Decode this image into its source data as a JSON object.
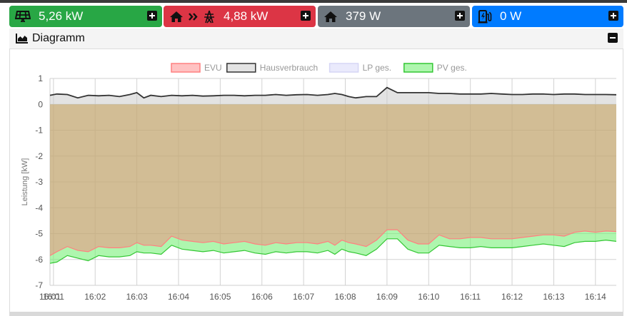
{
  "tiles": [
    {
      "value": "5,26 kW",
      "color": "#28a745",
      "icon": "solar-panel-icon"
    },
    {
      "value": "4,88 kW",
      "color": "#dc3545",
      "icon": "house-to-grid-icon"
    },
    {
      "value": "379 W",
      "color": "#6c757d",
      "icon": "house-icon"
    },
    {
      "value": "0 W",
      "color": "#007bff",
      "icon": "charging-station-icon"
    }
  ],
  "card": {
    "title": "Diagramm",
    "icon": "area-chart-icon"
  },
  "chart_data": {
    "type": "area",
    "ylabel": "Leistung [kW]",
    "ylim": [
      -7,
      1
    ],
    "y_ticks": [
      "1",
      "0",
      "-1",
      "-2",
      "-3",
      "-4",
      "-5",
      "-6",
      "-7"
    ],
    "x_ticks": [
      "16:01",
      "16:01",
      "16:02",
      "16:03",
      "16:04",
      "16:05",
      "16:06",
      "16:07",
      "16:08",
      "16:09",
      "16:10",
      "16:11",
      "16:12",
      "16:13",
      "16:14"
    ],
    "x_range": [
      "16:00:55",
      "16:14:30"
    ],
    "grid": true,
    "legend_position": "top",
    "x": [
      "16:00:55",
      "16:01:05",
      "16:01:20",
      "16:01:35",
      "16:01:50",
      "16:02:05",
      "16:02:20",
      "16:02:35",
      "16:02:50",
      "16:03:00",
      "16:03:10",
      "16:03:20",
      "16:03:35",
      "16:03:50",
      "16:04:05",
      "16:04:20",
      "16:04:35",
      "16:04:50",
      "16:05:05",
      "16:05:20",
      "16:05:35",
      "16:05:50",
      "16:06:05",
      "16:06:20",
      "16:06:35",
      "16:06:50",
      "16:07:05",
      "16:07:20",
      "16:07:35",
      "16:07:45",
      "16:07:55",
      "16:08:05",
      "16:08:15",
      "16:08:30",
      "16:08:45",
      "16:09:00",
      "16:09:15",
      "16:09:30",
      "16:09:45",
      "16:10:00",
      "16:10:15",
      "16:10:30",
      "16:10:45",
      "16:11:00",
      "16:11:15",
      "16:11:30",
      "16:11:45",
      "16:12:00",
      "16:12:15",
      "16:12:30",
      "16:12:45",
      "16:13:00",
      "16:13:15",
      "16:13:30",
      "16:13:45",
      "16:14:00",
      "16:14:15",
      "16:14:30"
    ],
    "series": [
      {
        "name": "EVU",
        "color": "#ff8080",
        "fill": "rgba(255,120,120,0.45)",
        "values": [
          -5.85,
          -5.7,
          -5.5,
          -5.65,
          -5.7,
          -5.5,
          -5.55,
          -5.55,
          -5.5,
          -5.35,
          -5.45,
          -5.45,
          -5.5,
          -5.1,
          -5.25,
          -5.3,
          -5.35,
          -5.3,
          -5.4,
          -5.35,
          -5.3,
          -5.4,
          -5.45,
          -5.35,
          -5.4,
          -5.35,
          -5.35,
          -5.4,
          -5.3,
          -5.45,
          -5.25,
          -5.35,
          -5.4,
          -5.5,
          -5.25,
          -4.85,
          -4.85,
          -5.25,
          -5.4,
          -5.4,
          -5.05,
          -5.2,
          -5.2,
          -5.15,
          -5.15,
          -5.2,
          -5.2,
          -5.2,
          -5.15,
          -5.1,
          -5.05,
          -5.05,
          -5.1,
          -4.95,
          -4.9,
          -4.95,
          -4.9,
          -4.92
        ]
      },
      {
        "name": "Hausverbrauch",
        "color": "#333333",
        "fill": "rgba(200,200,200,0.5)",
        "values": [
          0.35,
          0.4,
          0.38,
          0.25,
          0.35,
          0.33,
          0.35,
          0.3,
          0.38,
          0.45,
          0.25,
          0.35,
          0.3,
          0.35,
          0.33,
          0.35,
          0.32,
          0.33,
          0.35,
          0.35,
          0.33,
          0.35,
          0.35,
          0.38,
          0.35,
          0.37,
          0.38,
          0.35,
          0.38,
          0.42,
          0.38,
          0.3,
          0.25,
          0.3,
          0.3,
          0.65,
          0.45,
          0.45,
          0.45,
          0.45,
          0.42,
          0.42,
          0.4,
          0.4,
          0.4,
          0.42,
          0.4,
          0.38,
          0.38,
          0.4,
          0.4,
          0.38,
          0.4,
          0.4,
          0.38,
          0.38,
          0.38,
          0.37
        ]
      },
      {
        "name": "LP ges.",
        "color": "#d6d6f5",
        "fill": "rgba(220,220,250,0.6)",
        "values": [
          0,
          0,
          0,
          0,
          0,
          0,
          0,
          0,
          0,
          0,
          0,
          0,
          0,
          0,
          0,
          0,
          0,
          0,
          0,
          0,
          0,
          0,
          0,
          0,
          0,
          0,
          0,
          0,
          0,
          0,
          0,
          0,
          0,
          0,
          0,
          0,
          0,
          0,
          0,
          0,
          0,
          0,
          0,
          0,
          0,
          0,
          0,
          0,
          0,
          0,
          0,
          0,
          0,
          0,
          0,
          0,
          0,
          0
        ]
      },
      {
        "name": "PV ges.",
        "color": "#34c734",
        "fill": "rgba(120,240,120,0.6)",
        "values": [
          -6.15,
          -6.1,
          -5.85,
          -5.95,
          -6.05,
          -5.85,
          -5.9,
          -5.9,
          -5.85,
          -5.7,
          -5.75,
          -5.75,
          -5.8,
          -5.45,
          -5.6,
          -5.65,
          -5.7,
          -5.65,
          -5.75,
          -5.7,
          -5.65,
          -5.75,
          -5.8,
          -5.7,
          -5.75,
          -5.7,
          -5.7,
          -5.75,
          -5.65,
          -5.8,
          -5.6,
          -5.7,
          -5.75,
          -5.85,
          -5.6,
          -5.2,
          -5.2,
          -5.6,
          -5.75,
          -5.75,
          -5.45,
          -5.5,
          -5.55,
          -5.55,
          -5.5,
          -5.55,
          -5.55,
          -5.55,
          -5.5,
          -5.45,
          -5.4,
          -5.45,
          -5.5,
          -5.35,
          -5.3,
          -5.3,
          -5.25,
          -5.3
        ]
      }
    ]
  }
}
